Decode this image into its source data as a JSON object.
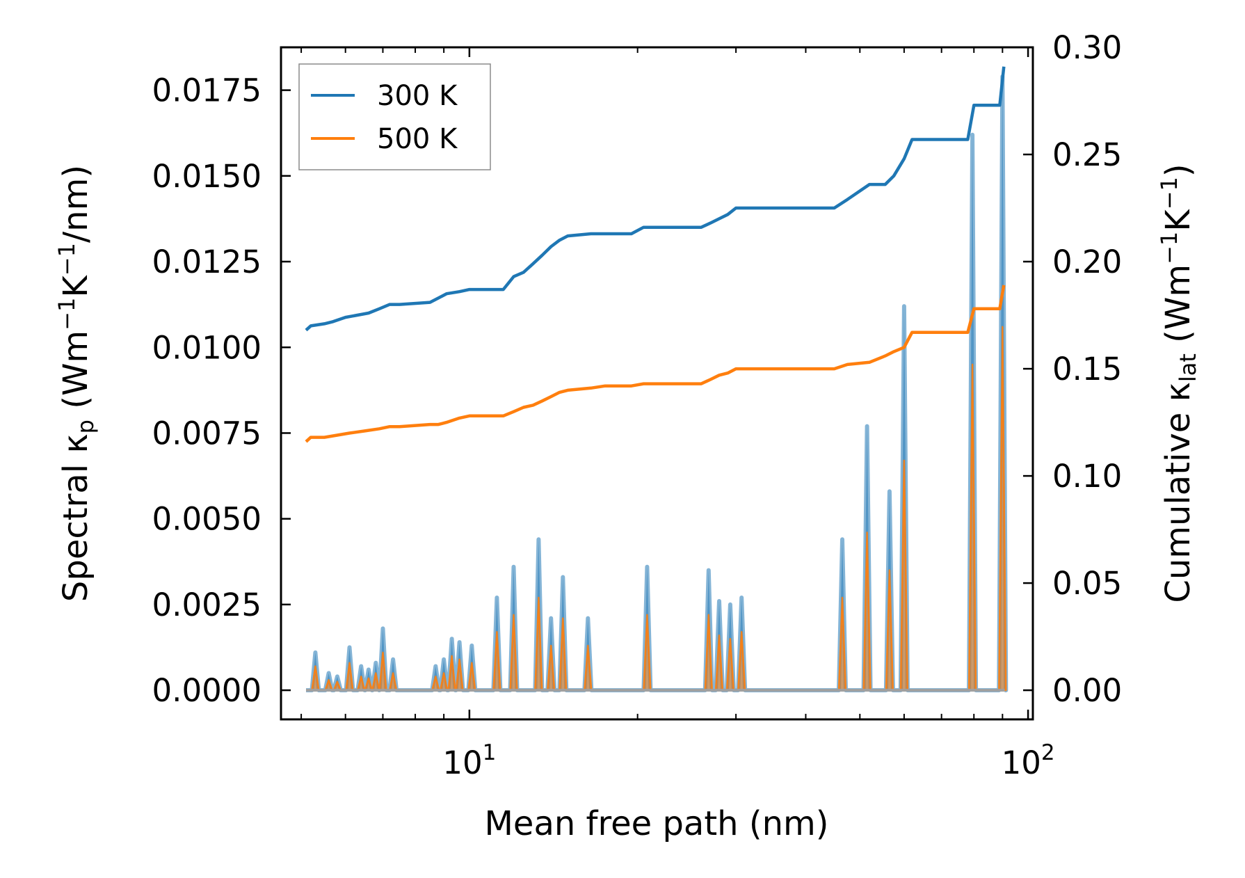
{
  "chart_data": {
    "type": "line",
    "xlabel": "Mean free path (nm)",
    "xscale": "log",
    "xlim": [
      4.6,
      102
    ],
    "x_ticks": [
      {
        "value": 10,
        "base": "10",
        "exp": "1"
      },
      {
        "value": 100,
        "base": "10",
        "exp": "2"
      }
    ],
    "ylabel_left": {
      "prefix": "Spectral κ",
      "sub": "p",
      "units_start": " (Wm",
      "sup1": "−1",
      "units_mid": "K",
      "sup2": "−1",
      "units_end": "/nm)"
    },
    "ylabel_right": {
      "prefix": "Cumulative κ",
      "sub": "lat",
      "units_start": " (Wm",
      "sup1": "−1",
      "units_mid": "K",
      "sup2": "−1",
      "units_end": ")"
    },
    "ylim_left": [
      -0.00085,
      0.01875
    ],
    "ylim_right": [
      -0.0136,
      0.3
    ],
    "left_ticks": [
      "0.0000",
      "0.0025",
      "0.0050",
      "0.0075",
      "0.0100",
      "0.0125",
      "0.0150",
      "0.0175"
    ],
    "right_ticks": [
      "0.00",
      "0.05",
      "0.10",
      "0.15",
      "0.20",
      "0.25",
      "0.30"
    ],
    "legend": [
      {
        "label": "300 K",
        "color": "#1f77b4"
      },
      {
        "label": "500 K",
        "color": "#ff7f0e"
      }
    ],
    "cumulative_series": [
      {
        "name": "300 K",
        "color": "#1f77b4",
        "x": [
          5.1,
          5.2,
          5.5,
          5.7,
          6.0,
          6.3,
          6.6,
          6.9,
          7.2,
          7.5,
          8.5,
          8.8,
          9.1,
          9.6,
          10.0,
          11.5,
          12.0,
          12.5,
          13.0,
          13.5,
          14.0,
          14.5,
          15.0,
          16.5,
          17.5,
          19.5,
          20.5,
          26.0,
          27.0,
          28.0,
          29.0,
          30.0,
          45.0,
          47.5,
          52.0,
          55.5,
          57.5,
          60.0,
          62.0,
          78.0,
          80.0,
          89.0,
          90.5
        ],
        "y": [
          0.168,
          0.17,
          0.171,
          0.172,
          0.174,
          0.175,
          0.176,
          0.178,
          0.18,
          0.18,
          0.181,
          0.183,
          0.185,
          0.186,
          0.187,
          0.187,
          0.193,
          0.195,
          0.199,
          0.203,
          0.207,
          0.21,
          0.212,
          0.213,
          0.213,
          0.213,
          0.216,
          0.216,
          0.218,
          0.22,
          0.222,
          0.225,
          0.225,
          0.229,
          0.236,
          0.236,
          0.24,
          0.248,
          0.257,
          0.257,
          0.273,
          0.273,
          0.291
        ]
      },
      {
        "name": "500 K",
        "color": "#ff7f0e",
        "x": [
          5.1,
          5.2,
          5.5,
          5.8,
          6.1,
          6.5,
          6.9,
          7.2,
          7.5,
          8.5,
          8.8,
          9.1,
          9.6,
          10.0,
          11.5,
          12.0,
          12.5,
          13.0,
          13.5,
          14.0,
          14.5,
          15.0,
          16.5,
          17.5,
          19.5,
          20.5,
          26.0,
          27.0,
          28.0,
          29.0,
          30.0,
          45.0,
          47.5,
          52.0,
          55.5,
          57.5,
          60.0,
          62.0,
          78.0,
          80.0,
          89.0,
          90.5
        ],
        "y": [
          0.116,
          0.118,
          0.118,
          0.119,
          0.12,
          0.121,
          0.122,
          0.123,
          0.123,
          0.124,
          0.124,
          0.125,
          0.127,
          0.128,
          0.128,
          0.13,
          0.132,
          0.133,
          0.135,
          0.137,
          0.139,
          0.14,
          0.141,
          0.142,
          0.142,
          0.143,
          0.143,
          0.145,
          0.147,
          0.148,
          0.15,
          0.15,
          0.152,
          0.153,
          0.156,
          0.158,
          0.16,
          0.167,
          0.167,
          0.178,
          0.178,
          0.189
        ]
      }
    ],
    "spectral_peaks": [
      {
        "x": 5.3,
        "v300": 0.0011,
        "v500": 0.0007
      },
      {
        "x": 5.6,
        "v300": 0.0005,
        "v500": 0.0003
      },
      {
        "x": 5.8,
        "v300": 0.0004,
        "v500": 0.00025
      },
      {
        "x": 6.1,
        "v300": 0.00125,
        "v500": 0.0008
      },
      {
        "x": 6.4,
        "v300": 0.0007,
        "v500": 0.0004
      },
      {
        "x": 6.6,
        "v300": 0.0006,
        "v500": 0.00035
      },
      {
        "x": 6.8,
        "v300": 0.0008,
        "v500": 0.0005
      },
      {
        "x": 7.0,
        "v300": 0.0018,
        "v500": 0.0011
      },
      {
        "x": 7.3,
        "v300": 0.0009,
        "v500": 0.0005
      },
      {
        "x": 8.7,
        "v300": 0.0007,
        "v500": 0.0004
      },
      {
        "x": 9.0,
        "v300": 0.0009,
        "v500": 0.0005
      },
      {
        "x": 9.3,
        "v300": 0.0015,
        "v500": 0.001
      },
      {
        "x": 9.6,
        "v300": 0.0014,
        "v500": 0.0009
      },
      {
        "x": 10.1,
        "v300": 0.0013,
        "v500": 0.0008
      },
      {
        "x": 11.2,
        "v300": 0.0027,
        "v500": 0.0017
      },
      {
        "x": 12.0,
        "v300": 0.0036,
        "v500": 0.0022
      },
      {
        "x": 13.3,
        "v300": 0.0044,
        "v500": 0.0027
      },
      {
        "x": 14.0,
        "v300": 0.0021,
        "v500": 0.0013
      },
      {
        "x": 14.7,
        "v300": 0.0033,
        "v500": 0.0021
      },
      {
        "x": 16.3,
        "v300": 0.0021,
        "v500": 0.0013
      },
      {
        "x": 20.8,
        "v300": 0.0036,
        "v500": 0.0022
      },
      {
        "x": 26.8,
        "v300": 0.0035,
        "v500": 0.0022
      },
      {
        "x": 28.0,
        "v300": 0.0026,
        "v500": 0.0016
      },
      {
        "x": 29.3,
        "v300": 0.0025,
        "v500": 0.0015
      },
      {
        "x": 30.7,
        "v300": 0.0027,
        "v500": 0.0017
      },
      {
        "x": 46.5,
        "v300": 0.0044,
        "v500": 0.0027
      },
      {
        "x": 51.5,
        "v300": 0.0077,
        "v500": 0.0046
      },
      {
        "x": 56.5,
        "v300": 0.0058,
        "v500": 0.0035
      },
      {
        "x": 60.0,
        "v300": 0.0112,
        "v500": 0.0067
      },
      {
        "x": 79.5,
        "v300": 0.0162,
        "v500": 0.0095
      },
      {
        "x": 90.0,
        "v300": 0.0179,
        "v500": 0.0106
      }
    ]
  }
}
